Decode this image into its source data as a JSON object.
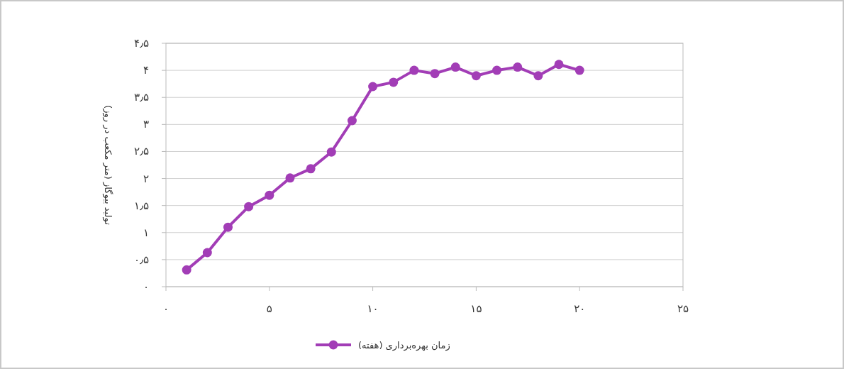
{
  "chart_data": {
    "type": "line",
    "ylabel": "تولید بیوگاز (متر مکعب در روز)",
    "x": [
      1,
      2,
      3,
      4,
      5,
      6,
      7,
      8,
      9,
      10,
      11,
      12,
      13,
      14,
      15,
      16,
      17,
      18,
      19,
      20
    ],
    "series": [
      {
        "name": "زمان بهره‌برداری (هفته)",
        "color": "#a23db6",
        "values": [
          0.31,
          0.63,
          1.1,
          1.48,
          1.69,
          2.01,
          2.18,
          2.49,
          3.07,
          3.7,
          3.78,
          4.0,
          3.94,
          4.06,
          3.9,
          4.0,
          4.06,
          3.9,
          4.11,
          4.0
        ]
      }
    ],
    "xlim": [
      0,
      25
    ],
    "ylim": [
      0,
      4.5
    ],
    "xticks": [
      {
        "value": 0,
        "label": "۰"
      },
      {
        "value": 5,
        "label": "۵"
      },
      {
        "value": 10,
        "label": "۱۰"
      },
      {
        "value": 15,
        "label": "۱۵"
      },
      {
        "value": 20,
        "label": "۲۰"
      },
      {
        "value": 25,
        "label": "۲۵"
      }
    ],
    "yticks": [
      {
        "value": 0,
        "label": "۰"
      },
      {
        "value": 0.5,
        "label": "۰٫۵"
      },
      {
        "value": 1,
        "label": "۱"
      },
      {
        "value": 1.5,
        "label": "۱٫۵"
      },
      {
        "value": 2,
        "label": "۲"
      },
      {
        "value": 2.5,
        "label": "۲٫۵"
      },
      {
        "value": 3,
        "label": "۳"
      },
      {
        "value": 3.5,
        "label": "۳٫۵"
      },
      {
        "value": 4,
        "label": "۴"
      },
      {
        "value": 4.5,
        "label": "۴٫۵"
      }
    ],
    "grid": "y",
    "legend": "bottom",
    "marker": "circle",
    "line_style": "solid"
  }
}
